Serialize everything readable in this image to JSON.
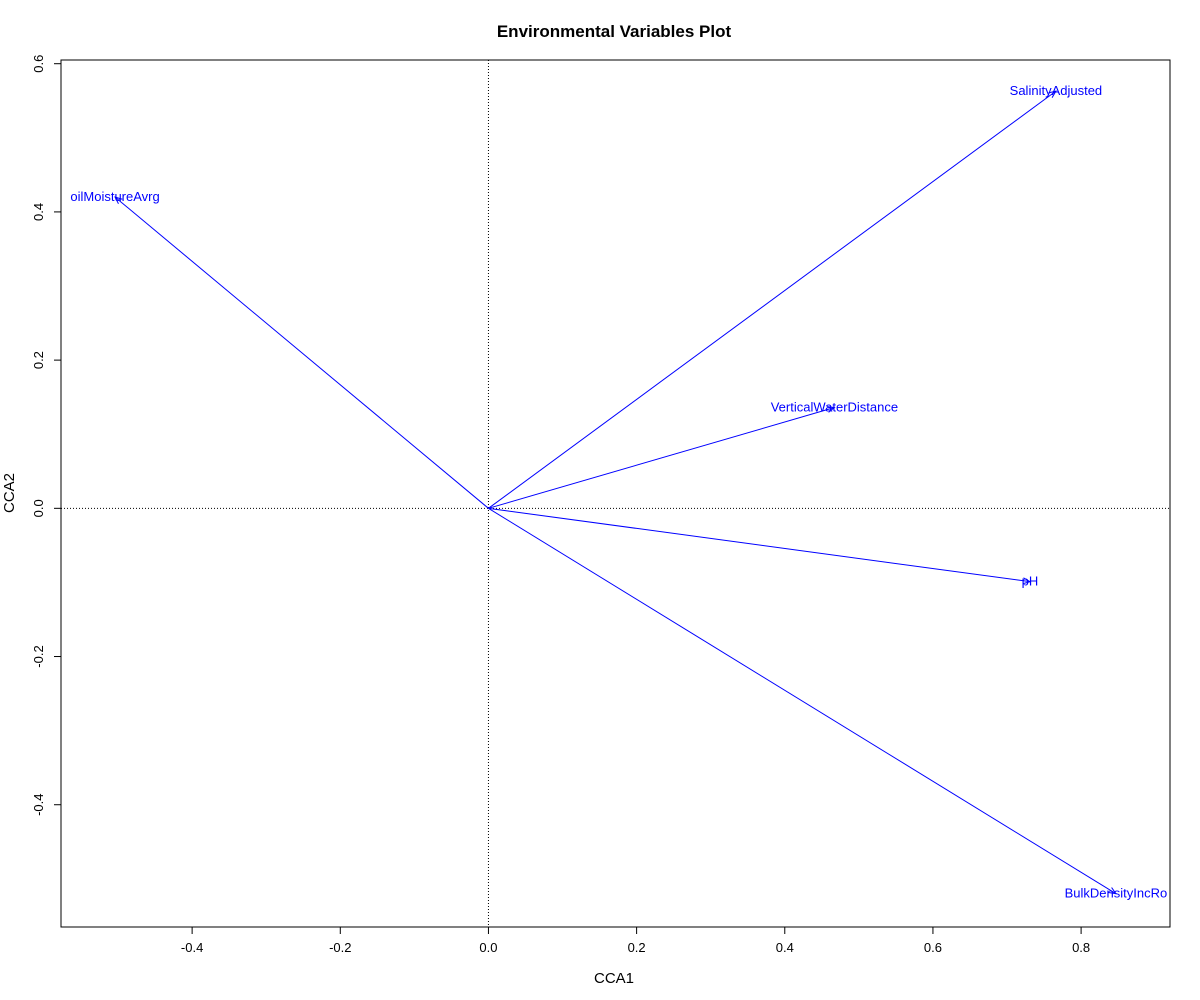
{
  "chart_data": {
    "type": "scatter",
    "subtype": "biplot-vectors",
    "title": "Environmental Variables Plot",
    "xlabel": "CCA1",
    "ylabel": "CCA2",
    "xlim": [
      -0.577,
      0.92
    ],
    "ylim": [
      -0.565,
      0.605
    ],
    "x_ticks": [
      -0.4,
      -0.2,
      0.0,
      0.2,
      0.4,
      0.6,
      0.8
    ],
    "x_tick_labels": [
      "-0.4",
      "-0.2",
      "0.0",
      "0.2",
      "0.4",
      "0.6",
      "0.8"
    ],
    "y_ticks": [
      -0.4,
      -0.2,
      0.0,
      0.2,
      0.4,
      0.6
    ],
    "y_tick_labels": [
      "-0.4",
      "-0.2",
      "0.0",
      "0.2",
      "0.4",
      "0.6"
    ],
    "reference_lines": {
      "x": 0,
      "y": 0,
      "style": "dotted"
    },
    "grid": false,
    "vector_color": "#0000ff",
    "vectors": [
      {
        "name": "SalinityAdjusted",
        "label": "SalinityAdjusted",
        "x": 0.766,
        "y": 0.563
      },
      {
        "name": "SoilMoistureAvrg",
        "label": "oilMoistureAvrg",
        "x": -0.504,
        "y": 0.42
      },
      {
        "name": "VerticalWaterDistance",
        "label": "VerticalWaterDistance",
        "x": 0.467,
        "y": 0.136
      },
      {
        "name": "pH",
        "label": "pH",
        "x": 0.731,
        "y": -0.099
      },
      {
        "name": "BulkDensityIncRocks",
        "label": "BulkDensityIncRo",
        "x": 0.847,
        "y": -0.52
      }
    ]
  }
}
